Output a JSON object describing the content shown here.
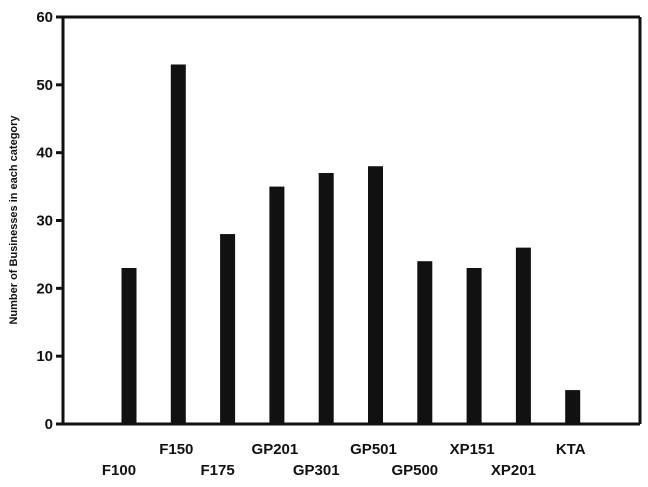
{
  "chart_data": {
    "type": "bar",
    "categories": [
      "F100",
      "F150",
      "F175",
      "GP201",
      "GP301",
      "GP501",
      "GP500",
      "XP151",
      "XP201",
      "KTA"
    ],
    "values": [
      23,
      53,
      28,
      35,
      37,
      38,
      24,
      23,
      26,
      5
    ],
    "title": "",
    "xlabel": "",
    "ylabel": "Number of Businesses in each category",
    "ylim": [
      0,
      60
    ],
    "yticks": [
      0,
      10,
      20,
      30,
      40,
      50,
      60
    ],
    "grid": false,
    "legend": "none",
    "bar_color": "#111111"
  }
}
